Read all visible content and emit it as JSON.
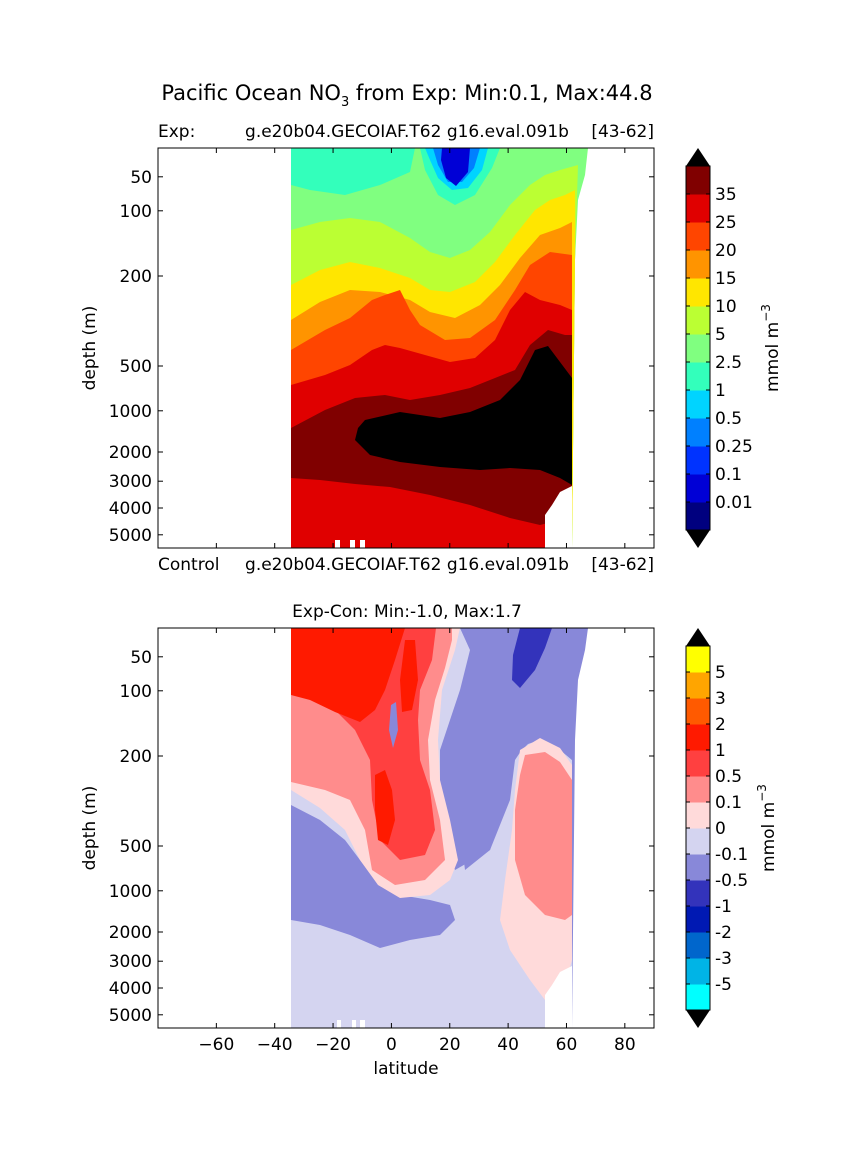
{
  "chart_data": [
    {
      "type": "heatmap",
      "suptitle": "Pacific Ocean NO",
      "suptitle_sub": "3",
      "suptitle_rest": " from Exp: Min:0.1, Max:44.8",
      "title_left": "Exp:",
      "title_center": "g.e20b04.GECOIAF.T62 g16.eval.091b",
      "title_right": "[43-62]",
      "bottom_left": "Control",
      "bottom_center": "g.e20b04.GECOIAF.T62 g16.eval.091b",
      "bottom_right": "[43-62]",
      "ylabel": "depth (m)",
      "y_ticks": [
        "50",
        "100",
        "200",
        "500",
        "1000",
        "2000",
        "3000",
        "4000",
        "5000"
      ],
      "y_tick_values": [
        50,
        100,
        200,
        500,
        1000,
        2000,
        3000,
        4000,
        5000
      ],
      "xlim": [
        -80,
        90
      ],
      "colorbar": {
        "label": "mmol m",
        "label_sup": "−3",
        "levels": [
          "0.01",
          "0.1",
          "0.25",
          "0.5",
          "1",
          "2.5",
          "5",
          "10",
          "15",
          "20",
          "25",
          "35"
        ],
        "colors": [
          "#00007f",
          "#0000d6",
          "#0033ff",
          "#0080ff",
          "#00d4ff",
          "#33ffbb",
          "#80ff80",
          "#bbff33",
          "#ffe600",
          "#ff9400",
          "#ff4500",
          "#e00000",
          "#800000"
        ],
        "extend_low": "#000000",
        "extend_high": "#000000"
      }
    },
    {
      "type": "heatmap",
      "title": "Exp-Con: Min:-1.0, Max:1.7",
      "ylabel": "depth (m)",
      "xlabel": "latitude",
      "x_ticks": [
        "−60",
        "−40",
        "−20",
        "0",
        "20",
        "40",
        "60",
        "80"
      ],
      "x_tick_values": [
        -60,
        -40,
        -20,
        0,
        20,
        40,
        60,
        80
      ],
      "y_ticks": [
        "50",
        "100",
        "200",
        "500",
        "1000",
        "2000",
        "3000",
        "4000",
        "5000"
      ],
      "y_tick_values": [
        50,
        100,
        200,
        500,
        1000,
        2000,
        3000,
        4000,
        5000
      ],
      "xlim": [
        -80,
        90
      ],
      "colorbar": {
        "label": "mmol m",
        "label_sup": "−3",
        "levels": [
          "-5",
          "-3",
          "-2",
          "-1",
          "-0.5",
          "-0.1",
          "0",
          "0.1",
          "0.5",
          "1",
          "2",
          "3",
          "5"
        ],
        "colors": [
          "#00ffff",
          "#00b4e6",
          "#0066cc",
          "#0019b3",
          "#3333bb",
          "#8888d9",
          "#d4d4f0",
          "#ffdada",
          "#ff8c8c",
          "#ff4040",
          "#ff1a00",
          "#ff5a00",
          "#ffa500",
          "#ffff00"
        ],
        "extend_low": "#000000",
        "extend_high": "#000000"
      }
    }
  ]
}
